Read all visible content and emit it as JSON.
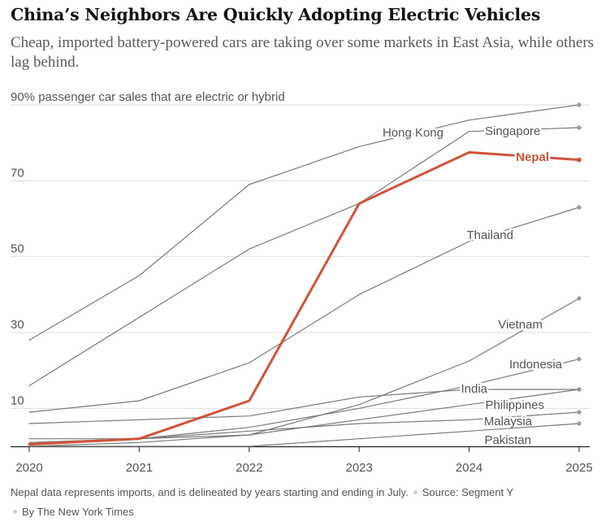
{
  "header": {
    "title": "China’s Neighbors Are Quickly Adopting Electric Vehicles",
    "subtitle": "Cheap, imported battery-powered cars are taking over some markets in East Asia, while others lag behind."
  },
  "footer": {
    "note": "Nepal data represents imports, and is delineated by years starting and ending in July.",
    "source": "Source: Segment Y",
    "credit": "By The New York Times"
  },
  "colors": {
    "highlight": "#d0533a",
    "line": "#7a7a7a",
    "grid": "#dddddd",
    "axis": "#222222",
    "label": "#555555"
  },
  "chart_data": {
    "type": "line",
    "ylabel": "passenger car sales that are electric or hybrid",
    "y_ticks": [
      {
        "value": 90,
        "label": "90%"
      },
      {
        "value": 70,
        "label": "70"
      },
      {
        "value": 50,
        "label": "50"
      },
      {
        "value": 30,
        "label": "30"
      },
      {
        "value": 10,
        "label": "10"
      }
    ],
    "ylim": [
      0,
      90
    ],
    "x": [
      "2020",
      "2021",
      "2022",
      "2023",
      "2024",
      "2025"
    ],
    "grid": true,
    "highlight_series": "Nepal",
    "series": [
      {
        "name": "Hong Kong",
        "values": [
          28,
          45,
          69,
          79,
          86,
          90
        ]
      },
      {
        "name": "Singapore",
        "values": [
          16,
          34,
          52,
          64,
          83,
          84
        ]
      },
      {
        "name": "Nepal",
        "values": [
          0.5,
          2,
          12,
          64,
          77.5,
          75.5
        ]
      },
      {
        "name": "Thailand",
        "values": [
          9,
          12,
          22,
          40,
          54,
          63
        ]
      },
      {
        "name": "Vietnam",
        "values": [
          0,
          1,
          3,
          11,
          22.5,
          39
        ]
      },
      {
        "name": "Indonesia",
        "values": [
          1,
          2,
          5,
          10,
          16,
          23
        ]
      },
      {
        "name": "India",
        "values": [
          6,
          7,
          8,
          13,
          15,
          15
        ]
      },
      {
        "name": "Philippines",
        "values": [
          1,
          2,
          3,
          7,
          11,
          15
        ]
      },
      {
        "name": "Malaysia",
        "values": [
          2,
          2,
          4,
          6,
          7,
          9
        ]
      },
      {
        "name": "Pakistan",
        "values": [
          0,
          0,
          0,
          2,
          4,
          6
        ]
      }
    ]
  }
}
